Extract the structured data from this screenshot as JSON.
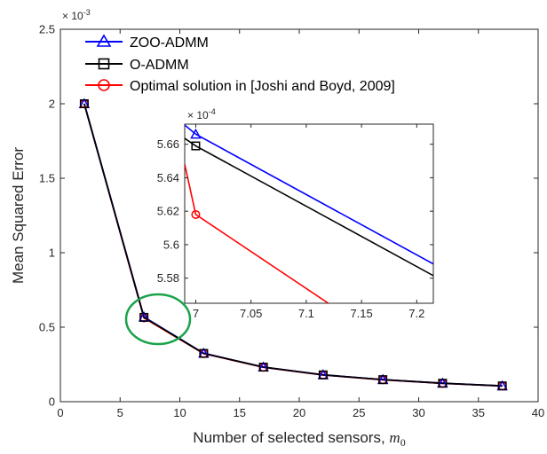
{
  "chart_data": {
    "type": "line",
    "xlabel": "Number of selected sensors, ",
    "xlabel_symbol": "m",
    "xlabel_subscript": "0",
    "ylabel": "Mean Squared Error",
    "xlim": [
      0,
      40
    ],
    "ylim": [
      0,
      0.0025
    ],
    "xticks": [
      0,
      5,
      10,
      15,
      20,
      25,
      30,
      35,
      40
    ],
    "yticks": [
      0,
      0.5,
      1,
      1.5,
      2,
      2.5
    ],
    "y_multiplier": {
      "base": "× 10",
      "exponent": "-3"
    },
    "legend_position": "top-left",
    "series": [
      {
        "name": "ZOO-ADMM",
        "color": "#0000ff",
        "marker": "triangle",
        "x": [
          2,
          7,
          12,
          17,
          22,
          27,
          32,
          37
        ],
        "y": [
          0.002,
          0.000568,
          0.000325,
          0.000232,
          0.00018,
          0.000148,
          0.000124,
          0.000106
        ]
      },
      {
        "name": "O-ADMM",
        "color": "#000000",
        "marker": "square",
        "x": [
          2,
          7,
          12,
          17,
          22,
          27,
          32,
          37
        ],
        "y": [
          0.002,
          0.000566,
          0.000324,
          0.000232,
          0.00018,
          0.000148,
          0.000124,
          0.000106
        ]
      },
      {
        "name": "Optimal solution in [Joshi and Boyd, 2009]",
        "color": "#ff0000",
        "marker": "circle",
        "x": [
          2,
          7,
          12,
          17,
          22,
          27,
          32,
          37
        ],
        "y": [
          0.002,
          0.000562,
          0.000323,
          0.000231,
          0.000179,
          0.000147,
          0.000123,
          0.000105
        ]
      }
    ],
    "inset": {
      "xlim": [
        6.99,
        7.215
      ],
      "ylim": [
        5.565,
        5.672
      ],
      "xticks": [
        7,
        7.05,
        7.1,
        7.15,
        7.2
      ],
      "xtick_labels": [
        "7",
        "7.05",
        "7.1",
        "7.15",
        "7.2"
      ],
      "yticks": [
        5.58,
        5.6,
        5.62,
        5.64,
        5.66
      ],
      "ytick_labels": [
        "5.58",
        "5.6",
        "5.62",
        "5.64",
        "5.66"
      ],
      "y_multiplier": {
        "base": "× 10",
        "exponent": "-4"
      },
      "series": [
        {
          "name": "ZOO-ADMM",
          "color": "#0000ff",
          "points": [
            [
              6.99,
              5.6715
            ],
            [
              7.0,
              5.666
            ],
            [
              7.215,
              5.5885
            ]
          ],
          "marker_at": [
            7.0,
            5.666
          ],
          "marker": "triangle"
        },
        {
          "name": "O-ADMM",
          "color": "#000000",
          "points": [
            [
              6.99,
              5.6635
            ],
            [
              7.0,
              5.659
            ],
            [
              7.215,
              5.5815
            ]
          ],
          "marker_at": [
            7.0,
            5.659
          ],
          "marker": "square"
        },
        {
          "name": "Optimal",
          "color": "#ff0000",
          "points": [
            [
              6.99,
              5.648
            ],
            [
              7.0,
              5.618
            ],
            [
              7.12,
              5.565
            ]
          ],
          "marker_at": [
            7.0,
            5.618
          ],
          "marker": "circle"
        }
      ]
    }
  }
}
